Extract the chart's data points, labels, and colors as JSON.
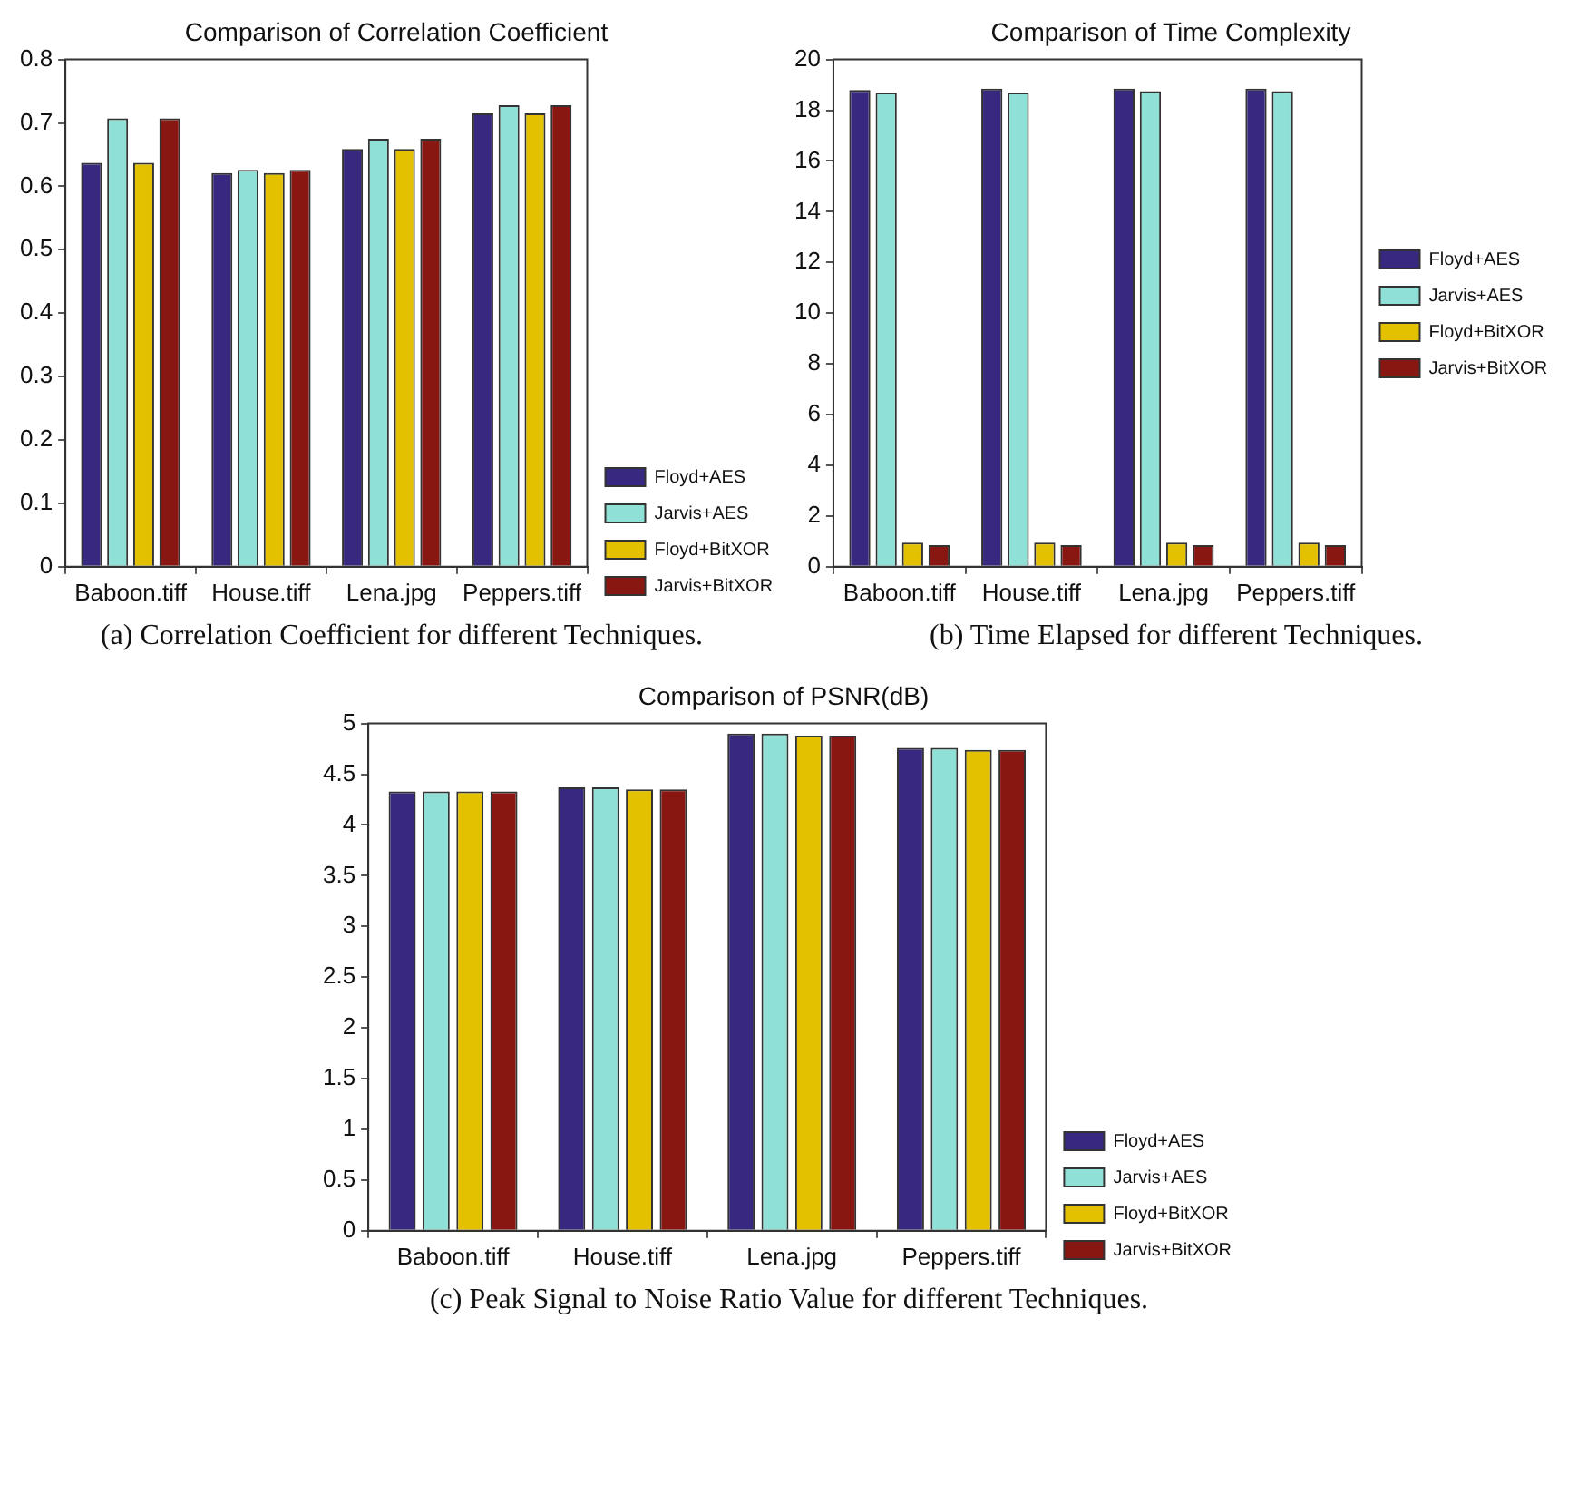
{
  "chart_data": [
    {
      "type": "bar",
      "title": "Comparison of Correlation Coefficient",
      "categories": [
        "Baboon.tiff",
        "House.tiff",
        "Lena.jpg",
        "Peppers.tiff"
      ],
      "series": [
        {
          "name": "Floyd+AES",
          "color": "#38287f",
          "values": [
            0.637,
            0.621,
            0.659,
            0.715
          ]
        },
        {
          "name": "Jarvis+AES",
          "color": "#8fe0d6",
          "values": [
            0.707,
            0.626,
            0.675,
            0.728
          ]
        },
        {
          "name": "Floyd+BitXOR",
          "color": "#e3c000",
          "values": [
            0.637,
            0.621,
            0.659,
            0.715
          ]
        },
        {
          "name": "Jarvis+BitXOR",
          "color": "#881611",
          "values": [
            0.707,
            0.626,
            0.675,
            0.728
          ]
        }
      ],
      "ylim": [
        0,
        0.8
      ],
      "yticks": [
        0,
        0.1,
        0.2,
        0.3,
        0.4,
        0.5,
        0.6,
        0.7,
        0.8
      ],
      "grid": false,
      "legend": "bottom right",
      "annotations": [
        "(a) Correlation Coefficient for different Techniques."
      ]
    },
    {
      "type": "bar",
      "title": "Comparison of Time Complexity",
      "categories": [
        "Baboon.tiff",
        "House.tiff",
        "Lena.jpg",
        "Peppers.tiff"
      ],
      "series": [
        {
          "name": "Floyd+AES",
          "color": "#38287f",
          "values": [
            18.8,
            18.85,
            18.85,
            18.85
          ]
        },
        {
          "name": "Jarvis+AES",
          "color": "#8fe0d6",
          "values": [
            18.7,
            18.7,
            18.75,
            18.75
          ]
        },
        {
          "name": "Floyd+BitXOR",
          "color": "#e3c000",
          "values": [
            0.95,
            0.95,
            0.95,
            0.95
          ]
        },
        {
          "name": "Jarvis+BitXOR",
          "color": "#881611",
          "values": [
            0.85,
            0.85,
            0.85,
            0.85
          ]
        }
      ],
      "ylim": [
        0,
        20
      ],
      "yticks": [
        0,
        2,
        4,
        6,
        8,
        10,
        12,
        14,
        16,
        18,
        20
      ],
      "grid": false,
      "legend": "right",
      "annotations": [
        "(b) Time Elapsed for different Techniques."
      ]
    },
    {
      "type": "bar",
      "title": "Comparison of PSNR(dB)",
      "categories": [
        "Baboon.tiff",
        "House.tiff",
        "Lena.jpg",
        "Peppers.tiff"
      ],
      "series": [
        {
          "name": "Floyd+AES",
          "color": "#38287f",
          "values": [
            4.33,
            4.37,
            4.9,
            4.76
          ]
        },
        {
          "name": "Jarvis+AES",
          "color": "#8fe0d6",
          "values": [
            4.33,
            4.37,
            4.9,
            4.76
          ]
        },
        {
          "name": "Floyd+BitXOR",
          "color": "#e3c000",
          "values": [
            4.33,
            4.35,
            4.88,
            4.74
          ]
        },
        {
          "name": "Jarvis+BitXOR",
          "color": "#881611",
          "values": [
            4.33,
            4.35,
            4.88,
            4.74
          ]
        }
      ],
      "ylim": [
        0,
        5
      ],
      "yticks": [
        0,
        0.5,
        1,
        1.5,
        2,
        2.5,
        3,
        3.5,
        4,
        4.5,
        5
      ],
      "grid": false,
      "legend": "bottom right",
      "annotations": [
        "(c) Peak Signal to Noise Ratio Value for different Techniques."
      ]
    }
  ]
}
